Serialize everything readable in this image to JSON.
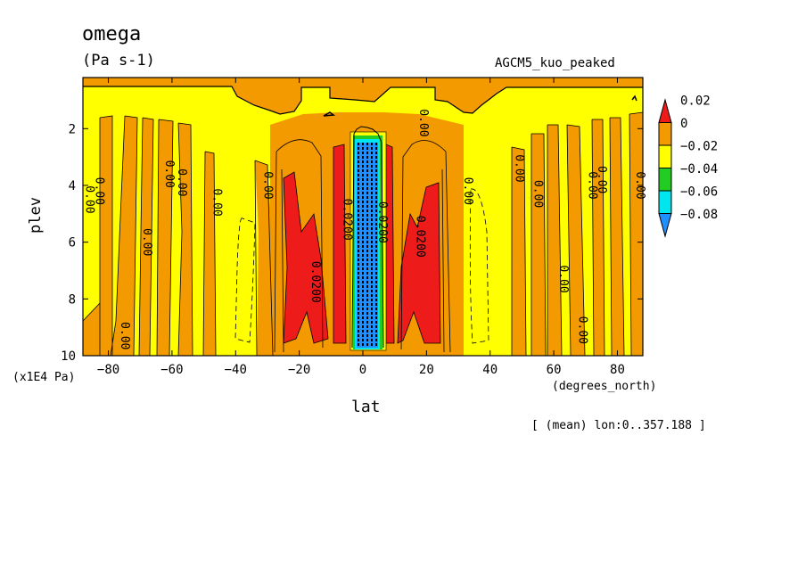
{
  "chart_data": {
    "type": "heatmap",
    "title": "omega",
    "units": "(Pa s-1)",
    "model_label": "AGCM5_kuo_peaked",
    "xlabel": "lat",
    "xlabel_units": "(degrees_north)",
    "ylabel": "plev",
    "ylabel_units": "(x1E4 Pa)",
    "note": "[ (mean) lon:0..357.188 ]",
    "xlim": [
      -88,
      88
    ],
    "ylim": [
      10,
      0.2
    ],
    "x_ticks": [
      -80,
      -60,
      -40,
      -20,
      0,
      20,
      40,
      60,
      80
    ],
    "y_ticks": [
      2,
      4,
      6,
      8,
      10
    ],
    "colorbar": {
      "levels": [
        "0.02",
        "0",
        "-0.02",
        "-0.04",
        "-0.06",
        "-0.08"
      ],
      "colors": [
        "#ee1b1b",
        "#f39a00",
        "#ffff00",
        "#22cc22",
        "#00e5ee",
        "#1e90ff"
      ]
    },
    "contour_labels": [
      {
        "text": "0.00",
        "lat": -87,
        "plev": 4.5
      },
      {
        "text": "0.00",
        "lat": -84,
        "plev": 4.2
      },
      {
        "text": "0.00",
        "lat": -76,
        "plev": 9.3
      },
      {
        "text": "0.00",
        "lat": -69,
        "plev": 6.0
      },
      {
        "text": "0.00",
        "lat": -62,
        "plev": 3.6
      },
      {
        "text": "0.00",
        "lat": -58,
        "plev": 3.9
      },
      {
        "text": "0.00",
        "lat": -47,
        "plev": 4.6
      },
      {
        "text": "0.00",
        "lat": -31,
        "plev": 4.0
      },
      {
        "text": "0.0200",
        "lat": -16,
        "plev": 7.4
      },
      {
        "text": "0.0200",
        "lat": -6,
        "plev": 5.2
      },
      {
        "text": "0.0200",
        "lat": 5,
        "plev": 5.3
      },
      {
        "text": "0.0200",
        "lat": 17,
        "plev": 5.8
      },
      {
        "text": "0.00",
        "lat": 18,
        "plev": 1.8
      },
      {
        "text": "0.00",
        "lat": 32,
        "plev": 4.2
      },
      {
        "text": "0.00",
        "lat": 48,
        "plev": 3.4
      },
      {
        "text": "0.00",
        "lat": 54,
        "plev": 4.3
      },
      {
        "text": "0.00",
        "lat": 62,
        "plev": 7.3
      },
      {
        "text": "0.00",
        "lat": 71,
        "plev": 4.0
      },
      {
        "text": "0.00",
        "lat": 74,
        "plev": 3.8
      },
      {
        "text": "0.00",
        "lat": 68,
        "plev": 9.1
      },
      {
        "text": "0.00",
        "lat": 86,
        "plev": 4.0
      }
    ]
  }
}
